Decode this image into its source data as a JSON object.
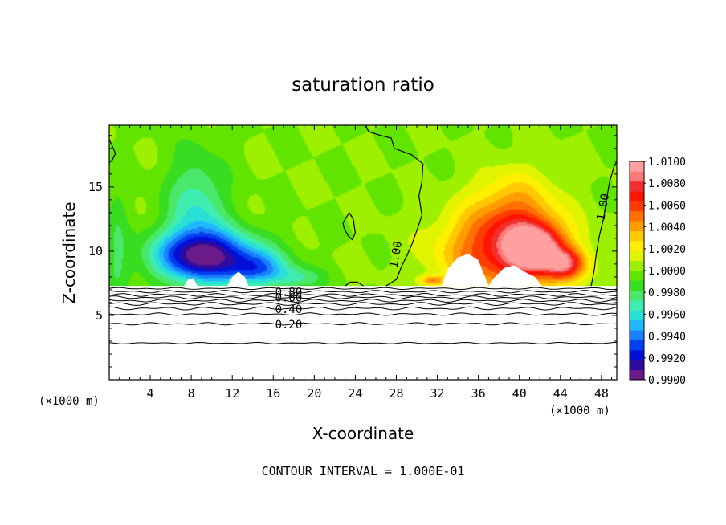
{
  "chart_data": {
    "type": "heatmap",
    "title": "saturation ratio",
    "xlabel": "X-coordinate",
    "ylabel": "Z-coordinate",
    "x_unit_left": "(×1000 m)",
    "x_unit_right": "(×1000 m)",
    "xlim": [
      0,
      49.5
    ],
    "ylim": [
      0,
      19.8
    ],
    "x_ticks": [
      4,
      8,
      12,
      16,
      20,
      24,
      28,
      32,
      36,
      40,
      44,
      48
    ],
    "x_tick_labels": [
      "4",
      "8",
      "12",
      "16",
      "20",
      "24",
      "28",
      "32",
      "36",
      "40",
      "44",
      "48"
    ],
    "y_ticks": [
      5,
      10,
      15
    ],
    "y_tick_labels": [
      "5",
      "10",
      "15"
    ],
    "footer": "CONTOUR INTERVAL = 1.000E-01",
    "colorbar": {
      "labels": [
        "1.0100",
        "1.0080",
        "1.0060",
        "1.0040",
        "1.0020",
        "1.0000",
        "0.9980",
        "0.9960",
        "0.9940",
        "0.9920",
        "0.9900"
      ],
      "min": 0.99,
      "max": 1.01,
      "colors": [
        "#6a1b8a",
        "#2e0b9e",
        "#0010d8",
        "#0040f0",
        "#1a80ff",
        "#20b8ff",
        "#28e0d8",
        "#40ecb0",
        "#4ae86a",
        "#38dc20",
        "#60e400",
        "#9cf000",
        "#e0f400",
        "#fff000",
        "#ffc800",
        "#ff9c00",
        "#ff7000",
        "#ff3c00",
        "#ff1400",
        "#f03030",
        "#ff7878",
        "#ffa0a0"
      ]
    },
    "surface_level_z": 7.3,
    "contour_labels": [
      {
        "text": "0.80",
        "x": 17.5,
        "z": 6.85
      },
      {
        "text": "0.60",
        "x": 17.5,
        "z": 6.4
      },
      {
        "text": "0.40",
        "x": 17.5,
        "z": 5.5
      },
      {
        "text": "0.20",
        "x": 17.5,
        "z": 4.3
      },
      {
        "text": "1.00",
        "x": 28.3,
        "z": 10.0
      },
      {
        "text": "1.00",
        "x": 48.5,
        "z": 13.7
      }
    ],
    "lower_contour_levels": [
      {
        "z": 7.1,
        "wiggle": 0.08
      },
      {
        "z": 6.85,
        "wiggle": 0.1
      },
      {
        "z": 6.6,
        "wiggle": 0.12
      },
      {
        "z": 6.4,
        "wiggle": 0.12
      },
      {
        "z": 6.15,
        "wiggle": 0.12
      },
      {
        "z": 5.9,
        "wiggle": 0.12
      },
      {
        "z": 5.55,
        "wiggle": 0.12
      },
      {
        "z": 5.1,
        "wiggle": 0.1
      },
      {
        "z": 4.35,
        "wiggle": 0.1
      },
      {
        "z": 2.85,
        "wiggle": 0.06
      }
    ],
    "fields": [
      {
        "name": "dry-plume-west",
        "x": 9.5,
        "z": 9.6,
        "sx": 5.2,
        "sz": 2.0,
        "value": 0.9915
      },
      {
        "name": "dry-column-west",
        "x": 8.5,
        "z": 13.0,
        "sx": 3.0,
        "sz": 4.5,
        "value": 0.9965
      },
      {
        "name": "dry-edge-1",
        "x": 14.5,
        "z": 8.6,
        "sx": 2.8,
        "sz": 1.3,
        "value": 0.9955
      },
      {
        "name": "dry-edge-2",
        "x": 18.5,
        "z": 7.9,
        "sx": 2.5,
        "sz": 0.9,
        "value": 0.9975
      },
      {
        "name": "dry-band-left",
        "x": 0.8,
        "z": 10.0,
        "sx": 1.2,
        "sz": 6.0,
        "value": 0.9985
      },
      {
        "name": "moist-core-east",
        "x": 38.5,
        "z": 10.0,
        "sx": 6.0,
        "sz": 3.2,
        "value": 1.0068
      },
      {
        "name": "moist-column-east",
        "x": 39.5,
        "z": 13.5,
        "sx": 4.0,
        "sz": 3.0,
        "value": 1.003
      },
      {
        "name": "moist-core-2",
        "x": 41.5,
        "z": 10.2,
        "sx": 2.5,
        "sz": 1.8,
        "value": 1.0082
      },
      {
        "name": "moist-halo",
        "x": 44.5,
        "z": 9.0,
        "sx": 2.0,
        "sz": 1.2,
        "value": 1.006
      },
      {
        "name": "moist-shelf",
        "x": 31.5,
        "z": 7.7,
        "sx": 1.2,
        "sz": 0.4,
        "value": 1.004
      }
    ],
    "white_mountains": [
      {
        "name": "saturated-bump-1",
        "points": [
          [
            32.4,
            7.3
          ],
          [
            33.0,
            8.6
          ],
          [
            34.0,
            9.5
          ],
          [
            35.0,
            9.8
          ],
          [
            36.0,
            9.3
          ],
          [
            36.5,
            8.3
          ],
          [
            37.0,
            7.3
          ]
        ]
      },
      {
        "name": "saturated-bump-2",
        "points": [
          [
            37.0,
            7.3
          ],
          [
            37.5,
            7.9
          ],
          [
            38.5,
            8.7
          ],
          [
            39.5,
            8.9
          ],
          [
            40.5,
            8.4
          ],
          [
            41.5,
            8.0
          ],
          [
            42.2,
            7.3
          ]
        ]
      },
      {
        "name": "dry-bump-west",
        "points": [
          [
            11.5,
            7.3
          ],
          [
            12.0,
            8.0
          ],
          [
            12.6,
            8.4
          ],
          [
            13.2,
            8.0
          ],
          [
            13.6,
            7.3
          ]
        ]
      },
      {
        "name": "dry-bump-2",
        "points": [
          [
            7.3,
            7.3
          ],
          [
            7.7,
            7.8
          ],
          [
            8.2,
            7.9
          ],
          [
            8.6,
            7.3
          ]
        ]
      }
    ],
    "unity_contours": [
      {
        "name": "contour-1.00-center",
        "points": [
          [
            27.0,
            7.3
          ],
          [
            28.0,
            7.8
          ],
          [
            28.5,
            8.8
          ],
          [
            29.0,
            9.6
          ],
          [
            29.5,
            10.5
          ],
          [
            30.0,
            11.6
          ],
          [
            30.5,
            12.8
          ],
          [
            30.2,
            14.3
          ],
          [
            30.5,
            15.4
          ],
          [
            30.6,
            16.8
          ],
          [
            29.5,
            17.5
          ],
          [
            27.8,
            18.0
          ],
          [
            27.5,
            18.8
          ],
          [
            26.5,
            19.0
          ],
          [
            25.3,
            19.3
          ],
          [
            25.0,
            19.8
          ]
        ]
      },
      {
        "name": "contour-1.00-east",
        "points": [
          [
            47.0,
            7.3
          ],
          [
            47.3,
            8.5
          ],
          [
            47.5,
            9.8
          ],
          [
            47.8,
            11.2
          ],
          [
            48.2,
            12.5
          ],
          [
            48.5,
            14.0
          ],
          [
            48.8,
            15.4
          ],
          [
            49.2,
            16.5
          ],
          [
            49.5,
            17.0
          ]
        ]
      },
      {
        "name": "contour-1.00-closed",
        "points": [
          [
            22.8,
            12.2
          ],
          [
            23.4,
            13.0
          ],
          [
            23.8,
            12.5
          ],
          [
            24.0,
            11.4
          ],
          [
            23.7,
            10.9
          ],
          [
            23.3,
            11.2
          ],
          [
            22.9,
            11.8
          ],
          [
            22.8,
            12.2
          ]
        ]
      },
      {
        "name": "contour-1.00-left",
        "points": [
          [
            0.0,
            18.7
          ],
          [
            0.4,
            18.0
          ],
          [
            0.6,
            17.6
          ],
          [
            0.3,
            17.1
          ],
          [
            0.0,
            16.9
          ]
        ]
      },
      {
        "name": "contour-1.00-floor",
        "points": [
          [
            23.0,
            7.3
          ],
          [
            23.5,
            7.6
          ],
          [
            24.2,
            7.6
          ],
          [
            24.8,
            7.3
          ]
        ]
      }
    ]
  }
}
